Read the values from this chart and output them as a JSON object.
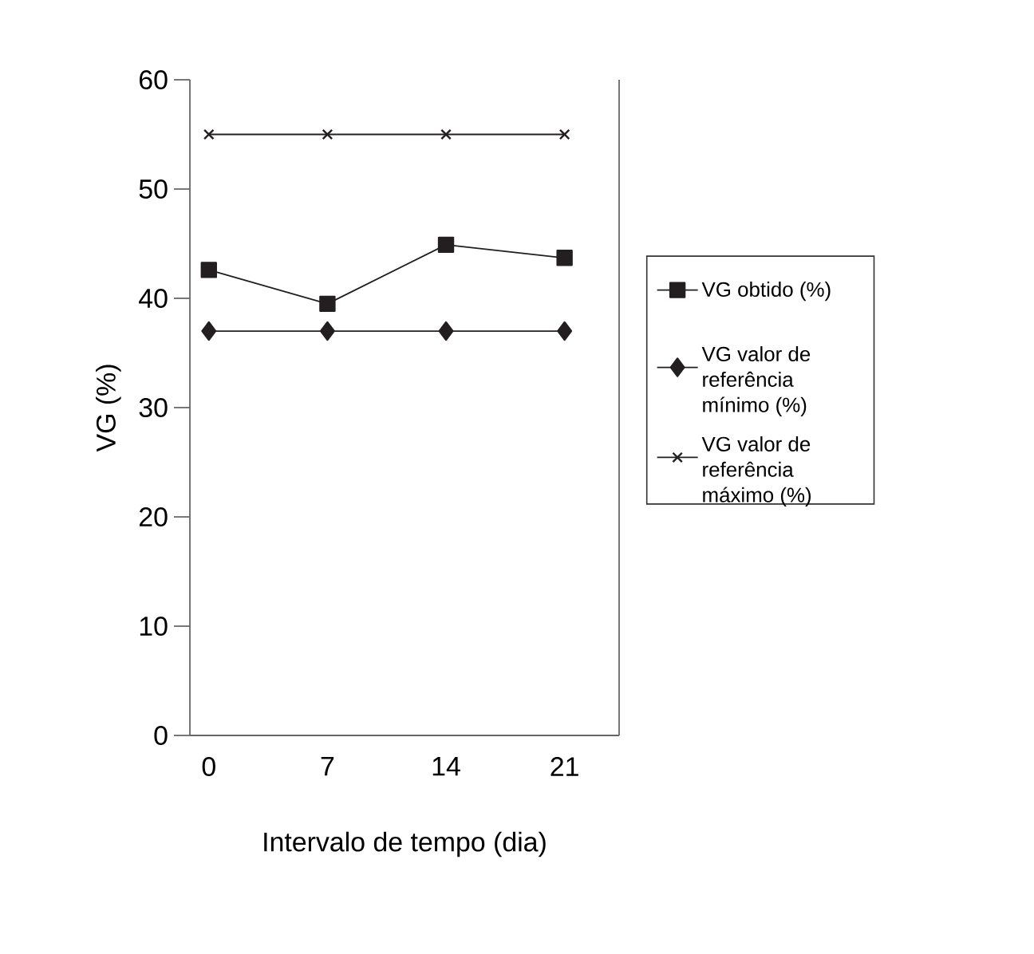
{
  "chart_data": {
    "type": "line",
    "xlabel": "Intervalo de tempo (dia)",
    "ylabel": "VG (%)",
    "categories": [
      "0",
      "7",
      "14",
      "21"
    ],
    "ylim": [
      0,
      60
    ],
    "yticks": [
      0,
      10,
      20,
      30,
      40,
      50,
      60
    ],
    "legend": "right",
    "grid": false,
    "series": [
      {
        "name": "VG obtido (%)",
        "color": "#231f20",
        "marker": "square",
        "values": [
          42.6,
          39.5,
          44.9,
          43.7
        ]
      },
      {
        "name": "VG valor de referência mínimo (%)",
        "color": "#231f20",
        "marker": "diamond",
        "values": [
          37,
          37,
          37,
          37
        ]
      },
      {
        "name": "VG valor de referência máximo (%)",
        "color": "#231f20",
        "marker": "cross",
        "values": [
          55,
          55,
          55,
          55
        ]
      }
    ]
  }
}
